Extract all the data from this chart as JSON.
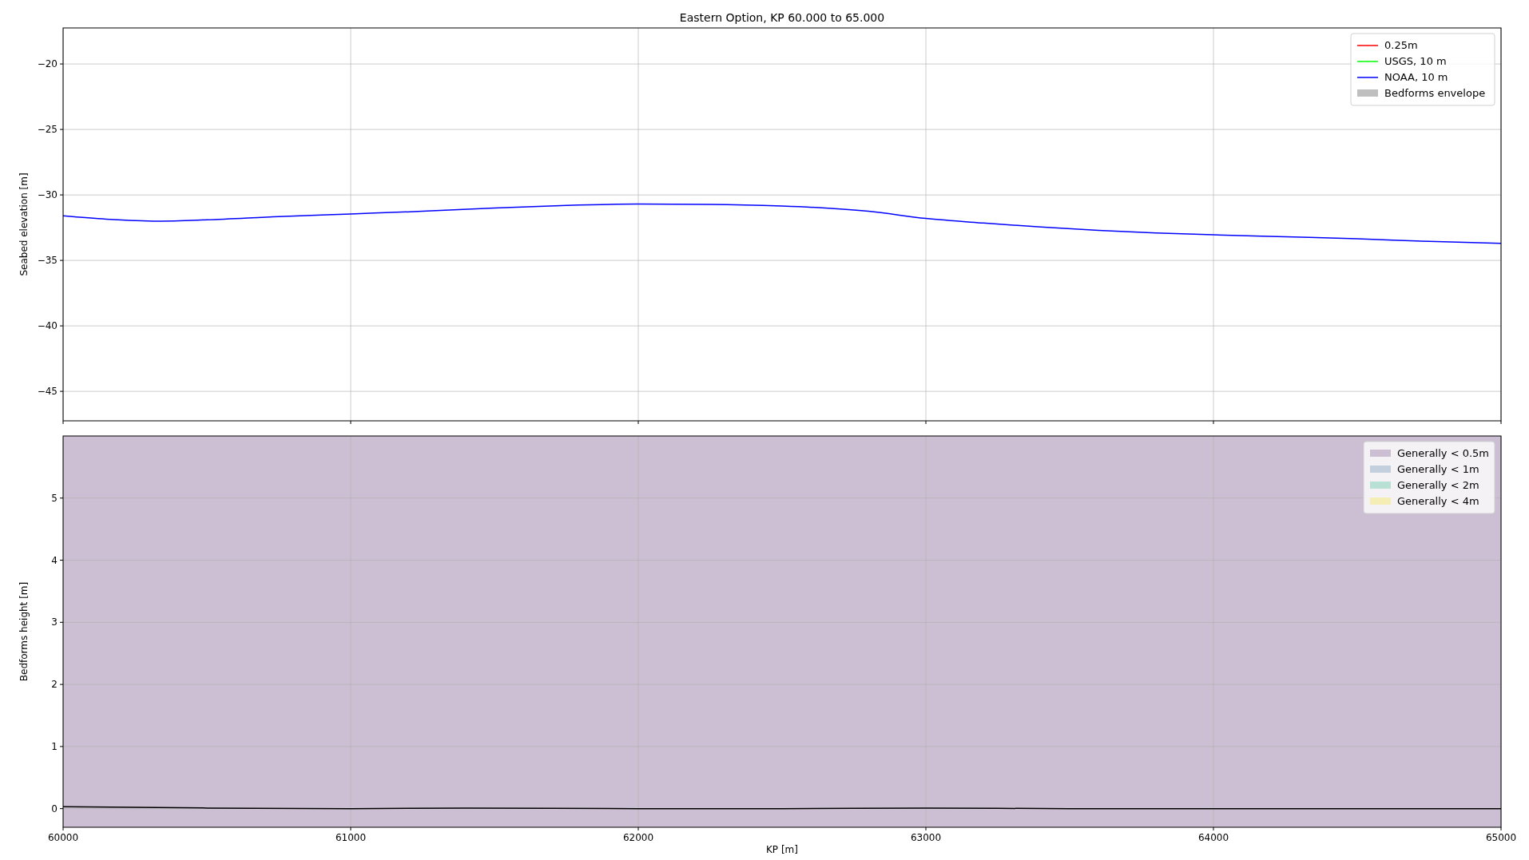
{
  "chart_data": [
    {
      "type": "line",
      "title": "Eastern Option, KP 60.000 to 65.000",
      "ylabel": "Seabed elevation [m]",
      "x": [
        60000,
        60150,
        60330,
        60500,
        60750,
        61000,
        61250,
        61500,
        61750,
        62000,
        62250,
        62500,
        62650,
        62800,
        63000,
        63200,
        63400,
        63600,
        63800,
        64000,
        64250,
        64500,
        64750,
        65000
      ],
      "xlim": [
        60000,
        65000
      ],
      "xticks": [
        60000,
        61000,
        62000,
        63000,
        64000,
        65000
      ],
      "ylim": [
        -47.25,
        -17.25
      ],
      "yticks": [
        {
          "value": -45,
          "label": "−45"
        },
        {
          "value": -40,
          "label": "−40"
        },
        {
          "value": -35,
          "label": "−35"
        },
        {
          "value": -30,
          "label": "−30"
        },
        {
          "value": -25,
          "label": "−25"
        },
        {
          "value": -20,
          "label": "−20"
        }
      ],
      "tick_labels": "y",
      "grid": true,
      "legend": "top right",
      "series": [
        {
          "name": "0.25m",
          "color": "#ff0000",
          "values": [
            null,
            null,
            null,
            null,
            null,
            null,
            null,
            null,
            null,
            null,
            null,
            null,
            null,
            null,
            null,
            null,
            null,
            null,
            null,
            null,
            null,
            null,
            null,
            null
          ]
        },
        {
          "name": "USGS, 10 m",
          "color": "#00ff00",
          "values": [
            null,
            null,
            null,
            null,
            null,
            null,
            null,
            null,
            null,
            null,
            null,
            null,
            null,
            null,
            null,
            null,
            null,
            null,
            null,
            null,
            null,
            null,
            null,
            null
          ]
        },
        {
          "name": "NOAA, 10 m",
          "color": "#0000ff",
          "values": [
            -31.6,
            -31.85,
            -32.0,
            -31.9,
            -31.65,
            -31.45,
            -31.25,
            -31.0,
            -30.8,
            -30.7,
            -30.72,
            -30.85,
            -31.0,
            -31.25,
            -31.8,
            -32.15,
            -32.45,
            -32.7,
            -32.9,
            -33.05,
            -33.2,
            -33.35,
            -33.55,
            -33.7
          ]
        },
        {
          "name": "Bedforms envelope",
          "type": "area",
          "color": "#bfbfbf",
          "values": [
            null,
            null,
            null,
            null,
            null,
            null,
            null,
            null,
            null,
            null,
            null,
            null,
            null,
            null,
            null,
            null,
            null,
            null,
            null,
            null,
            null,
            null,
            null,
            null
          ]
        }
      ]
    },
    {
      "type": "line",
      "xlabel": "KP [m]",
      "ylabel": "Bedforms height [m]",
      "x": [
        60000,
        60500,
        61000,
        61400,
        62000,
        62500,
        63000,
        63500,
        64000,
        64500,
        65000
      ],
      "xlim": [
        60000,
        65000
      ],
      "xticks": [
        60000,
        61000,
        62000,
        63000,
        64000,
        65000
      ],
      "ylim": [
        -0.3,
        6
      ],
      "yticks": [
        0,
        1,
        2,
        3,
        4,
        5
      ],
      "grid": true,
      "legend": "top right",
      "bands": [
        {
          "axis": "x",
          "from": 60000,
          "to": 65000,
          "label": "Generally < 0.5m",
          "color": "#cdbfd3"
        }
      ],
      "series": [
        {
          "color": "#000000",
          "values": [
            0.03,
            0.01,
            0,
            0.01,
            0,
            0,
            0.01,
            0,
            0,
            0,
            0
          ]
        },
        {
          "name": "Generally < 1m",
          "type": "area",
          "color": "#c3cfdd",
          "values": [
            null,
            null,
            null,
            null,
            null,
            null,
            null,
            null,
            null,
            null,
            null
          ]
        },
        {
          "name": "Generally < 2m",
          "type": "area",
          "color": "#b8e0d3",
          "values": [
            null,
            null,
            null,
            null,
            null,
            null,
            null,
            null,
            null,
            null,
            null
          ]
        },
        {
          "name": "Generally < 4m",
          "type": "area",
          "color": "#f4edb4",
          "values": [
            null,
            null,
            null,
            null,
            null,
            null,
            null,
            null,
            null,
            null,
            null
          ]
        }
      ]
    }
  ]
}
